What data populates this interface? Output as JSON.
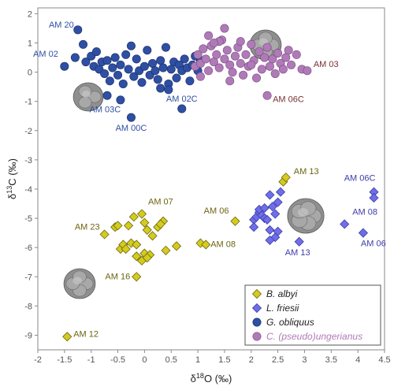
{
  "chart_data": {
    "type": "scatter",
    "xlabel": "δ18O (‰)",
    "ylabel": "δ13C (‰)",
    "xlim": [
      -2,
      4.5
    ],
    "ylim": [
      -9.5,
      2.2
    ],
    "xticks": [
      "-2",
      "-1.5",
      "-1",
      "-0.5",
      "0",
      "0.5",
      "1",
      "1.5",
      "2",
      "2.5",
      "3",
      "3.5",
      "4",
      "4.5"
    ],
    "xtick_values": [
      -2,
      -1.5,
      -1,
      -0.5,
      0,
      0.5,
      1,
      1.5,
      2,
      2.5,
      3,
      3.5,
      4,
      4.5
    ],
    "yticks": [
      "2",
      "1",
      "0",
      "-1",
      "-2",
      "-3",
      "-4",
      "-5",
      "-6",
      "-7",
      "-8",
      "-9"
    ],
    "ytick_values": [
      2,
      1,
      0,
      -1,
      -2,
      -3,
      -4,
      -5,
      -6,
      -7,
      -8,
      -9
    ],
    "grid": false,
    "legend_position": "bottom-right",
    "series": [
      {
        "name": "B. albyi",
        "marker": "diamond",
        "color": "#d4cc1c",
        "stroke": "#6b6410",
        "points": [
          [
            -0.75,
            -5.55
          ],
          [
            -0.55,
            -5.3
          ],
          [
            -0.5,
            -5.25
          ],
          [
            -0.45,
            -6.05
          ],
          [
            -0.4,
            -5.9
          ],
          [
            -0.35,
            -6.05
          ],
          [
            -0.3,
            -5.25
          ],
          [
            -0.25,
            -5.85
          ],
          [
            -0.2,
            -4.95
          ],
          [
            0.0,
            -5.15
          ],
          [
            0.05,
            -5.4
          ],
          [
            0.0,
            -6.2
          ],
          [
            0.1,
            -6.25
          ],
          [
            0.15,
            -5.6
          ],
          [
            -0.15,
            -6.3
          ],
          [
            -0.05,
            -4.85
          ],
          [
            -0.15,
            -5.9
          ],
          [
            -0.05,
            -6.45
          ],
          [
            0.05,
            -6.35
          ],
          [
            0.25,
            -5.3
          ],
          [
            0.35,
            -5.1
          ],
          [
            0.3,
            -5.2
          ],
          [
            0.4,
            -6.1
          ],
          [
            0.6,
            -5.95
          ],
          [
            1.05,
            -5.85
          ],
          [
            1.15,
            -5.9
          ],
          [
            1.7,
            -5.1
          ],
          [
            2.6,
            -3.75
          ],
          [
            2.65,
            -3.6
          ],
          [
            -0.15,
            -7.0
          ],
          [
            -1.45,
            -9.05
          ]
        ]
      },
      {
        "name": "L. friesii",
        "marker": "diamond",
        "color": "#6f6ee8",
        "stroke": "#3c3ba8",
        "points": [
          [
            2.05,
            -5.05
          ],
          [
            2.05,
            -5.3
          ],
          [
            2.1,
            -4.95
          ],
          [
            2.15,
            -4.8
          ],
          [
            2.15,
            -4.7
          ],
          [
            2.2,
            -4.9
          ],
          [
            2.25,
            -5.0
          ],
          [
            2.25,
            -4.65
          ],
          [
            2.3,
            -5.05
          ],
          [
            2.35,
            -4.2
          ],
          [
            2.35,
            -5.4
          ],
          [
            2.4,
            -4.6
          ],
          [
            2.45,
            -4.85
          ],
          [
            2.5,
            -4.45
          ],
          [
            2.5,
            -5.45
          ],
          [
            2.55,
            -4.1
          ],
          [
            2.45,
            -5.65
          ],
          [
            2.35,
            -5.75
          ],
          [
            2.9,
            -5.8
          ],
          [
            3.75,
            -5.2
          ],
          [
            4.1,
            -5.5
          ],
          [
            4.3,
            -4.1
          ],
          [
            4.3,
            -4.3
          ]
        ]
      },
      {
        "name": "G. obliquus",
        "marker": "circle",
        "color": "#2e4fa3",
        "stroke": "#1a2d66",
        "points": [
          [
            -1.25,
            1.45
          ],
          [
            -1.5,
            0.2
          ],
          [
            -1.3,
            0.5
          ],
          [
            -1.15,
            0.95
          ],
          [
            -1.1,
            0.35
          ],
          [
            -1.0,
            0.55
          ],
          [
            -0.95,
            0.2
          ],
          [
            -0.9,
            0.7
          ],
          [
            -0.85,
            0.1
          ],
          [
            -0.8,
            0.35
          ],
          [
            -0.75,
            -0.05
          ],
          [
            -0.7,
            0.4
          ],
          [
            -0.65,
            -0.3
          ],
          [
            -0.6,
            0.15
          ],
          [
            -0.55,
            0.5
          ],
          [
            -0.5,
            -0.1
          ],
          [
            -0.45,
            0.25
          ],
          [
            -0.4,
            -0.4
          ],
          [
            -0.35,
            0.6
          ],
          [
            -0.3,
            0.1
          ],
          [
            -0.25,
            0.9
          ],
          [
            -0.2,
            -0.15
          ],
          [
            -0.15,
            0.45
          ],
          [
            -0.1,
            0.05
          ],
          [
            -0.05,
            -0.35
          ],
          [
            0.0,
            0.2
          ],
          [
            0.05,
            0.75
          ],
          [
            0.1,
            -0.1
          ],
          [
            0.15,
            0.3
          ],
          [
            0.2,
            0.05
          ],
          [
            0.25,
            -0.25
          ],
          [
            0.3,
            0.4
          ],
          [
            0.35,
            0.15
          ],
          [
            0.4,
            0.85
          ],
          [
            0.45,
            -0.4
          ],
          [
            0.5,
            0.1
          ],
          [
            0.55,
            0.35
          ],
          [
            0.6,
            -0.2
          ],
          [
            0.65,
            0.25
          ],
          [
            0.7,
            0.05
          ],
          [
            0.75,
            0.45
          ],
          [
            0.8,
            0.15
          ],
          [
            0.85,
            -0.3
          ],
          [
            0.9,
            0.25
          ],
          [
            0.95,
            0.55
          ],
          [
            1.0,
            0.05
          ],
          [
            1.05,
            0.4
          ],
          [
            -0.7,
            -0.8
          ],
          [
            -0.45,
            -0.95
          ],
          [
            -0.25,
            -1.55
          ],
          [
            0.45,
            -0.6
          ],
          [
            0.3,
            -0.55
          ],
          [
            0.7,
            -1.25
          ]
        ]
      },
      {
        "name": "C. (pseudo)ungerianus",
        "marker": "circle",
        "color": "#b07ab8",
        "stroke": "#7a4d82",
        "points": [
          [
            0.95,
            0.2
          ],
          [
            1.0,
            0.6
          ],
          [
            1.05,
            0.3
          ],
          [
            1.1,
            0.8
          ],
          [
            1.15,
            0.45
          ],
          [
            1.2,
            0.05
          ],
          [
            1.25,
            0.9
          ],
          [
            1.3,
            0.35
          ],
          [
            1.35,
            0.6
          ],
          [
            1.4,
            0.15
          ],
          [
            1.45,
            1.1
          ],
          [
            1.5,
            0.45
          ],
          [
            1.55,
            0.75
          ],
          [
            1.6,
            0.25
          ],
          [
            1.65,
            0.0
          ],
          [
            1.7,
            0.55
          ],
          [
            1.75,
            0.85
          ],
          [
            1.8,
            0.3
          ],
          [
            1.85,
            -0.1
          ],
          [
            1.9,
            0.6
          ],
          [
            1.95,
            0.2
          ],
          [
            2.0,
            0.95
          ],
          [
            2.05,
            0.4
          ],
          [
            2.1,
            -0.2
          ],
          [
            2.15,
            0.7
          ],
          [
            2.2,
            0.1
          ],
          [
            2.25,
            0.5
          ],
          [
            2.3,
            0.85
          ],
          [
            2.35,
            0.2
          ],
          [
            2.4,
            0.45
          ],
          [
            2.45,
            -0.05
          ],
          [
            2.5,
            0.65
          ],
          [
            2.55,
            0.3
          ],
          [
            2.6,
            0.1
          ],
          [
            2.65,
            0.5
          ],
          [
            2.75,
            0.25
          ],
          [
            2.85,
            0.6
          ],
          [
            2.95,
            0.1
          ],
          [
            3.05,
            0.05
          ],
          [
            1.2,
            1.25
          ],
          [
            1.5,
            1.5
          ],
          [
            1.4,
            1.05
          ],
          [
            1.3,
            1.0
          ],
          [
            2.3,
            -0.8
          ],
          [
            1.6,
            -0.3
          ],
          [
            1.8,
            1.05
          ],
          [
            2.0,
            0.25
          ],
          [
            1.05,
            -0.15
          ],
          [
            2.7,
            0.75
          ]
        ]
      }
    ],
    "annotations": [
      {
        "text": "AM 20",
        "x": -1.25,
        "y": 1.45,
        "anchor": "end",
        "dx": -5,
        "dy": -3,
        "color": "#2e4fa3"
      },
      {
        "text": "AM 02",
        "x": -1.5,
        "y": 0.2,
        "anchor": "end",
        "dx": -8,
        "dy": -12,
        "color": "#2e4fa3"
      },
      {
        "text": "AM 03C",
        "x": -0.65,
        "y": -0.3,
        "anchor": "middle",
        "dx": -6,
        "dy": 40,
        "color": "#2e4fa3"
      },
      {
        "text": "AM 00C",
        "x": -0.25,
        "y": -1.55,
        "anchor": "middle",
        "dx": 0,
        "dy": 17,
        "color": "#2e4fa3"
      },
      {
        "text": "AM 02C",
        "x": 0.7,
        "y": -1.25,
        "anchor": "middle",
        "dx": 0,
        "dy": -9,
        "color": "#2e4fa3"
      },
      {
        "text": "AM 03",
        "x": 3.05,
        "y": 0.05,
        "anchor": "start",
        "dx": 8,
        "dy": -5,
        "color": "#7a3030"
      },
      {
        "text": "AM 06C",
        "x": 2.3,
        "y": -0.8,
        "anchor": "start",
        "dx": 7,
        "dy": 8,
        "color": "#7a3030"
      },
      {
        "text": "AM 13",
        "x": 2.65,
        "y": -3.6,
        "anchor": "start",
        "dx": 10,
        "dy": -4,
        "color": "#6b6410"
      },
      {
        "text": "AM 06",
        "x": 1.7,
        "y": -5.1,
        "anchor": "end",
        "dx": -8,
        "dy": -10,
        "color": "#6b6410"
      },
      {
        "text": "AM 07",
        "x": -0.05,
        "y": -4.85,
        "anchor": "start",
        "dx": 8,
        "dy": -12,
        "color": "#6b6410"
      },
      {
        "text": "AM 23",
        "x": -0.75,
        "y": -5.55,
        "anchor": "end",
        "dx": -6,
        "dy": -6,
        "color": "#6b6410"
      },
      {
        "text": "AM 08",
        "x": 1.15,
        "y": -5.9,
        "anchor": "start",
        "dx": 6,
        "dy": 3,
        "color": "#6b6410"
      },
      {
        "text": "AM 16",
        "x": -0.15,
        "y": -7.0,
        "anchor": "end",
        "dx": -8,
        "dy": 3,
        "color": "#6b6410"
      },
      {
        "text": "AM 12",
        "x": -1.45,
        "y": -9.05,
        "anchor": "start",
        "dx": 8,
        "dy": 0,
        "color": "#6b6410"
      },
      {
        "text": "AM 06C",
        "x": 4.3,
        "y": -4.1,
        "anchor": "end",
        "dx": 2,
        "dy": -14,
        "color": "#3c3ba8"
      },
      {
        "text": "AM 08",
        "x": 3.75,
        "y": -5.2,
        "anchor": "start",
        "dx": 10,
        "dy": -12,
        "color": "#3c3ba8"
      },
      {
        "text": "AM 06",
        "x": 4.1,
        "y": -5.5,
        "anchor": "start",
        "dx": -3,
        "dy": 17,
        "color": "#3c3ba8"
      },
      {
        "text": "AM 13",
        "x": 2.9,
        "y": -5.8,
        "anchor": "middle",
        "dx": -2,
        "dy": 17,
        "color": "#3c3ba8"
      }
    ]
  }
}
